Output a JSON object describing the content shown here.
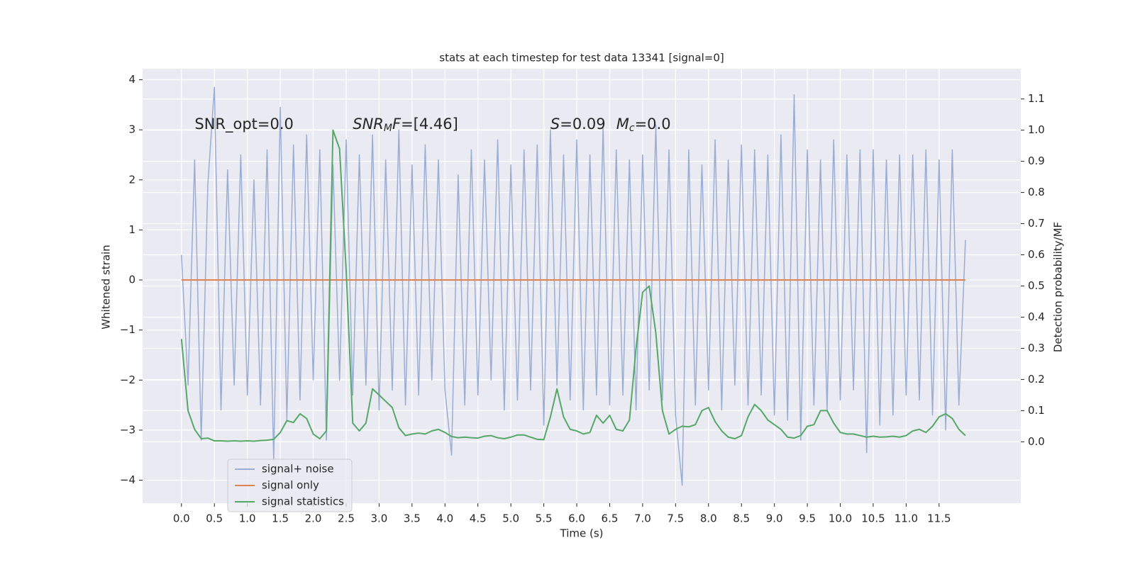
{
  "chart_data": {
    "type": "line",
    "title": "stats at each timestep for test data 13341 [signal=0]",
    "x_label": "Time (s)",
    "y_label": "Whitened strain",
    "y2_label": "Detection probability/MF",
    "grid": true,
    "legend": "lower left",
    "xlim": [
      -0.59,
      12.74
    ],
    "ylim": [
      -4.46,
      4.22
    ],
    "y2lim": [
      -0.197,
      1.197
    ],
    "xticks": [
      {
        "value": 0,
        "label": "0.0"
      },
      0.5,
      {
        "value": 1,
        "label": "1.0"
      },
      1.5,
      {
        "value": 2,
        "label": "2.0"
      },
      2.5,
      {
        "value": 3,
        "label": "3.0"
      },
      3.5,
      {
        "value": 4,
        "label": "4.0"
      },
      4.5,
      {
        "value": 5,
        "label": "5.0"
      },
      5.5,
      {
        "value": 6,
        "label": "6.0"
      },
      6.5,
      {
        "value": 7,
        "label": "7.0"
      },
      7.5,
      {
        "value": 8,
        "label": "8.0"
      },
      8.5,
      {
        "value": 9,
        "label": "9.0"
      },
      9.5,
      {
        "value": 10,
        "label": "10.0"
      },
      10.5,
      {
        "value": 11,
        "label": "11.0"
      },
      11.5
    ],
    "yticks": [
      {
        "value": -4,
        "label": "−4"
      },
      {
        "value": -3,
        "label": "−3"
      },
      {
        "value": -2,
        "label": "−2"
      },
      {
        "value": -1,
        "label": "−1"
      },
      0,
      1,
      2,
      3,
      4
    ],
    "y2ticks": [
      {
        "value": 0,
        "label": "0.0"
      },
      0.1,
      0.2,
      0.3,
      0.4,
      0.5,
      0.6,
      0.7,
      0.8,
      0.9,
      {
        "value": 1,
        "label": "1.0"
      },
      1.1
    ],
    "annotations": [
      {
        "parts": [
          {
            "text": "SNR_opt=0.0",
            "style": "normal"
          }
        ]
      },
      {
        "parts": [
          {
            "text": "SNR",
            "style": "italic"
          },
          {
            "text": "M",
            "style": "italic-sub"
          },
          {
            "text": "F",
            "style": "italic"
          },
          {
            "text": "=[4.46]",
            "style": "normal"
          }
        ]
      },
      {
        "parts": [
          {
            "text": "S",
            "style": "italic"
          },
          {
            "text": "=0.09",
            "style": "normal"
          }
        ]
      },
      {
        "parts": [
          {
            "text": "M",
            "style": "italic"
          },
          {
            "text": "c",
            "style": "italic-sub"
          },
          {
            "text": "=0.0",
            "style": "normal"
          }
        ]
      }
    ],
    "x": [
      0,
      0.1,
      0.2,
      0.3,
      0.4,
      0.5,
      0.6,
      0.7,
      0.8,
      0.9,
      1,
      1.1,
      1.2,
      1.3,
      1.4,
      1.5,
      1.6,
      1.7,
      1.8,
      1.9,
      2,
      2.1,
      2.2,
      2.3,
      2.4,
      2.5,
      2.6,
      2.7,
      2.8,
      2.9,
      3,
      3.1,
      3.2,
      3.3,
      3.4,
      3.5,
      3.6,
      3.7,
      3.8,
      3.9,
      4,
      4.1,
      4.2,
      4.3,
      4.4,
      4.5,
      4.6,
      4.7,
      4.8,
      4.9,
      5,
      5.1,
      5.2,
      5.3,
      5.4,
      5.5,
      5.6,
      5.7,
      5.8,
      5.9,
      6,
      6.1,
      6.2,
      6.3,
      6.4,
      6.5,
      6.6,
      6.7,
      6.8,
      6.9,
      7,
      7.1,
      7.2,
      7.3,
      7.4,
      7.5,
      7.6,
      7.7,
      7.8,
      7.9,
      8,
      8.1,
      8.2,
      8.3,
      8.4,
      8.5,
      8.6,
      8.7,
      8.8,
      8.9,
      9,
      9.1,
      9.2,
      9.3,
      9.4,
      9.5,
      9.6,
      9.7,
      9.8,
      9.9,
      10,
      10.1,
      10.2,
      10.3,
      10.4,
      10.5,
      10.6,
      10.7,
      10.8,
      10.9,
      11,
      11.1,
      11.2,
      11.3,
      11.4,
      11.5,
      11.6,
      11.7,
      11.8,
      11.9
    ],
    "series": [
      {
        "name": "signal+ noise",
        "color": "#9aadd2",
        "axis": "y",
        "values": [
          0.5,
          -2.1,
          2.4,
          -3.2,
          1.9,
          3.85,
          -2.6,
          2.2,
          -2.1,
          2.5,
          -2.3,
          2.0,
          -2.5,
          2.6,
          -3.6,
          3.45,
          -2.8,
          2.7,
          -2.4,
          2.9,
          -2.0,
          2.6,
          -3.2,
          2.3,
          -2.0,
          2.8,
          -2.3,
          2.5,
          -2.1,
          2.9,
          -2.6,
          2.4,
          -2.2,
          3.0,
          -2.5,
          2.3,
          -2.3,
          2.7,
          -2.0,
          2.4,
          -2.2,
          -3.5,
          2.1,
          -2.5,
          2.6,
          -2.3,
          2.4,
          -2.0,
          2.8,
          -2.6,
          2.3,
          -2.4,
          2.6,
          -2.2,
          2.7,
          -2.9,
          3.0,
          -2.1,
          2.5,
          -2.4,
          2.8,
          -2.6,
          2.5,
          -2.3,
          3.05,
          -2.5,
          2.6,
          -2.3,
          2.4,
          -2.6,
          2.5,
          -2.2,
          3.1,
          -2.4,
          2.6,
          -2.7,
          -4.1,
          2.6,
          -2.5,
          2.3,
          -2.2,
          2.8,
          -2.6,
          2.4,
          -2.1,
          2.7,
          -2.5,
          2.6,
          -2.3,
          2.5,
          -2.7,
          2.9,
          -2.8,
          3.7,
          -3.2,
          2.6,
          -2.5,
          2.4,
          -2.6,
          2.8,
          -2.4,
          2.5,
          -2.2,
          2.6,
          -3.45,
          2.6,
          -2.9,
          2.4,
          -2.7,
          2.5,
          -2.3,
          2.5,
          -2.4,
          2.6,
          -2.7,
          2.4,
          -3.0,
          2.6,
          -2.5,
          0.8
        ]
      },
      {
        "name": "signal only",
        "color": "#dd8452",
        "axis": "y",
        "values": [
          0,
          0,
          0,
          0,
          0,
          0,
          0,
          0,
          0,
          0,
          0,
          0,
          0,
          0,
          0,
          0,
          0,
          0,
          0,
          0,
          0,
          0,
          0,
          0,
          0,
          0,
          0,
          0,
          0,
          0,
          0,
          0,
          0,
          0,
          0,
          0,
          0,
          0,
          0,
          0,
          0,
          0,
          0,
          0,
          0,
          0,
          0,
          0,
          0,
          0,
          0,
          0,
          0,
          0,
          0,
          0,
          0,
          0,
          0,
          0,
          0,
          0,
          0,
          0,
          0,
          0,
          0,
          0,
          0,
          0,
          0,
          0,
          0,
          0,
          0,
          0,
          0,
          0,
          0,
          0,
          0,
          0,
          0,
          0,
          0,
          0,
          0,
          0,
          0,
          0,
          0,
          0,
          0,
          0,
          0,
          0,
          0,
          0,
          0,
          0,
          0,
          0,
          0,
          0,
          0,
          0,
          0,
          0,
          0,
          0,
          0,
          0,
          0,
          0,
          0,
          0,
          0,
          0,
          0,
          0
        ]
      },
      {
        "name": "signal statistics",
        "color": "#55a868",
        "axis": "y2",
        "values": [
          0.33,
          0.1,
          0.04,
          0.01,
          0.012,
          0.003,
          0.003,
          0.002,
          0.003,
          0.002,
          0.003,
          0.002,
          0.004,
          0.005,
          0.008,
          0.03,
          0.068,
          0.062,
          0.09,
          0.075,
          0.025,
          0.01,
          0.035,
          1.0,
          0.94,
          0.55,
          0.06,
          0.035,
          0.06,
          0.17,
          0.15,
          0.13,
          0.11,
          0.045,
          0.02,
          0.025,
          0.028,
          0.025,
          0.035,
          0.04,
          0.03,
          0.017,
          0.013,
          0.015,
          0.013,
          0.012,
          0.018,
          0.02,
          0.013,
          0.01,
          0.015,
          0.022,
          0.022,
          0.015,
          0.008,
          0.007,
          0.08,
          0.17,
          0.08,
          0.04,
          0.035,
          0.025,
          0.03,
          0.085,
          0.06,
          0.085,
          0.04,
          0.035,
          0.07,
          0.3,
          0.48,
          0.5,
          0.35,
          0.1,
          0.025,
          0.04,
          0.05,
          0.048,
          0.055,
          0.1,
          0.11,
          0.065,
          0.035,
          0.015,
          0.01,
          0.02,
          0.08,
          0.12,
          0.1,
          0.07,
          0.055,
          0.04,
          0.015,
          0.012,
          0.02,
          0.05,
          0.055,
          0.1,
          0.1,
          0.06,
          0.03,
          0.025,
          0.025,
          0.02,
          0.015,
          0.018,
          0.015,
          0.016,
          0.018,
          0.015,
          0.02,
          0.035,
          0.04,
          0.03,
          0.05,
          0.08,
          0.09,
          0.075,
          0.04,
          0.02
        ]
      }
    ]
  }
}
